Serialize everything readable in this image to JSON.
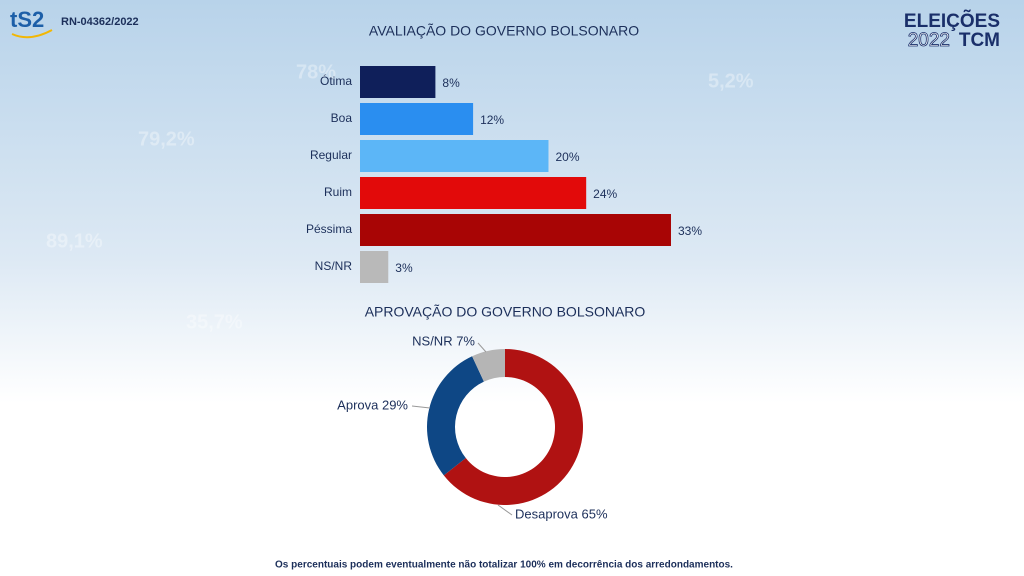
{
  "header": {
    "logo": "tS2",
    "registration": "RN-04362/2022",
    "brand_title": "ELEIÇÕES",
    "brand_year": "2022",
    "brand_name": "TCM"
  },
  "background_texts": [
    "78%",
    "79,2%",
    "89,1%",
    "35,7%",
    "5,2%"
  ],
  "chart_data": [
    {
      "type": "hbar",
      "title": "AVALIAÇÃO DO GOVERNO BOLSONARO",
      "categories": [
        "Ótima",
        "Boa",
        "Regular",
        "Ruim",
        "Péssima",
        "NS/NR"
      ],
      "values": [
        8,
        12,
        20,
        24,
        33,
        3
      ],
      "value_labels": [
        "8%",
        "12%",
        "20%",
        "24%",
        "33%",
        "3%"
      ],
      "colors": [
        "#0f1f5a",
        "#2a8ef0",
        "#5cb6f7",
        "#e20a0a",
        "#a80505",
        "#b9b9b9"
      ],
      "xlim": [
        0,
        33
      ]
    },
    {
      "type": "donut",
      "title": "APROVAÇÃO DO GOVERNO BOLSONARO",
      "values": [
        65,
        29,
        7
      ],
      "value_labels": [
        "Desaprova 65%",
        "Aprova 29%",
        "NS/NR 7%"
      ],
      "colors": [
        "#b01212",
        "#0e4785",
        "#b5b5b5"
      ]
    }
  ],
  "footer": "Os percentuais podem eventualmente não totalizar 100% em decorrência dos arredondamentos."
}
